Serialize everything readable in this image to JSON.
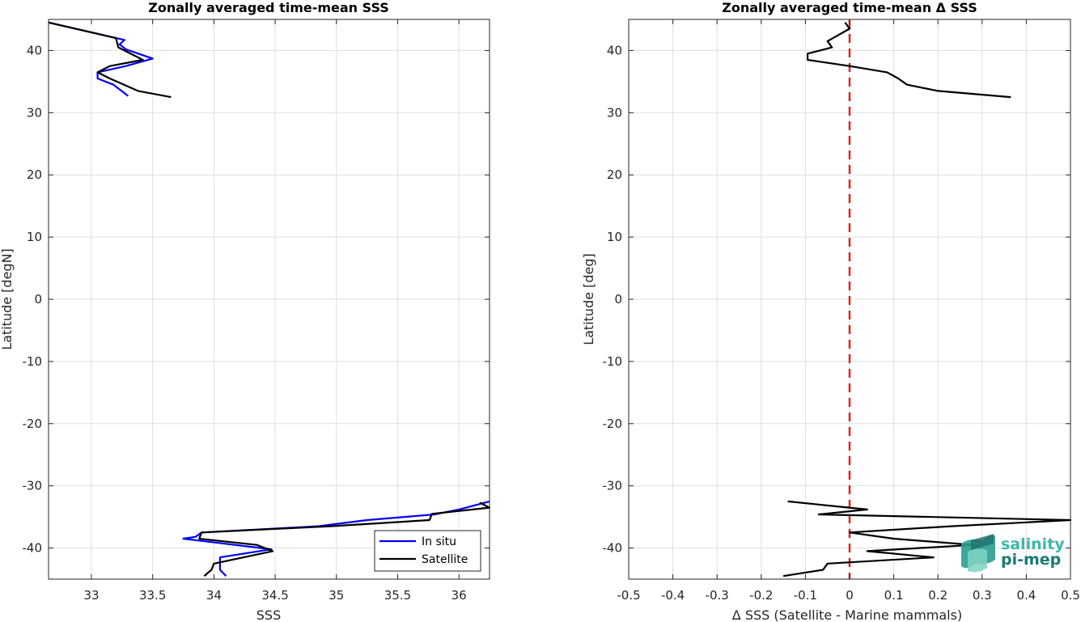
{
  "chart_data": [
    {
      "type": "line",
      "title": "Zonally averaged time-mean SSS",
      "xlabel": "SSS",
      "ylabel": "Latitude [degN]",
      "xlim": [
        32.65,
        36.25
      ],
      "ylim": [
        -45,
        45
      ],
      "xticks": [
        33,
        33.5,
        34,
        34.5,
        35,
        35.5,
        36
      ],
      "xtick_labels": [
        "33",
        "33.5",
        "34",
        "34.5",
        "35",
        "35.5",
        "36"
      ],
      "yticks": [
        -40,
        -30,
        -20,
        -10,
        0,
        10,
        20,
        30,
        40
      ],
      "ytick_labels": [
        "-40",
        "-30",
        "-20",
        "-10",
        "0",
        "10",
        "20",
        "30",
        "40"
      ],
      "grid": true,
      "legend_position": "bottom-right",
      "series": [
        {
          "name": "In situ",
          "color": "#0000ff",
          "segments": [
            [
              [
                32.65,
                44.5
              ],
              [
                33.27,
                41.7
              ],
              [
                33.23,
                41.0
              ],
              [
                33.28,
                40.2
              ],
              [
                33.5,
                38.7
              ],
              [
                33.28,
                37.5
              ],
              [
                33.05,
                36.5
              ],
              [
                33.05,
                35.5
              ],
              [
                33.18,
                34.5
              ],
              [
                33.3,
                32.7
              ]
            ],
            [
              [
                36.25,
                -32.5
              ],
              [
                36.0,
                -33.8
              ],
              [
                35.8,
                -34.6
              ],
              [
                35.25,
                -35.5
              ],
              [
                34.85,
                -36.5
              ],
              [
                33.9,
                -37.5
              ],
              [
                33.85,
                -38.2
              ],
              [
                33.75,
                -38.5
              ],
              [
                34.47,
                -40.2
              ],
              [
                34.05,
                -41.5
              ],
              [
                34.05,
                -43.5
              ],
              [
                34.1,
                -44.5
              ]
            ]
          ]
        },
        {
          "name": "Satellite",
          "color": "#000000",
          "segments": [
            [
              [
                32.65,
                44.5
              ],
              [
                33.2,
                42.0
              ],
              [
                33.22,
                40.5
              ],
              [
                33.42,
                38.5
              ],
              [
                33.15,
                37.5
              ],
              [
                33.05,
                36.5
              ],
              [
                33.15,
                35.5
              ],
              [
                33.38,
                33.5
              ],
              [
                33.65,
                32.5
              ]
            ],
            [
              [
                36.17,
                -32.7
              ],
              [
                36.25,
                -33.5
              ],
              [
                35.78,
                -34.5
              ],
              [
                35.76,
                -35.5
              ],
              [
                34.95,
                -36.5
              ],
              [
                33.9,
                -37.5
              ],
              [
                33.88,
                -38.5
              ],
              [
                34.35,
                -39.5
              ],
              [
                34.48,
                -40.5
              ],
              [
                34.0,
                -42.5
              ],
              [
                33.98,
                -43.5
              ],
              [
                33.92,
                -44.5
              ]
            ]
          ]
        }
      ]
    },
    {
      "type": "line",
      "title": "Zonally averaged time-mean Δ SSS",
      "xlabel": "Δ SSS (Satellite - Marine mammals)",
      "ylabel": "Latitude [deg]",
      "xlim": [
        -0.5,
        0.5
      ],
      "ylim": [
        -45,
        45
      ],
      "xticks": [
        -0.5,
        -0.4,
        -0.3,
        -0.2,
        -0.1,
        0,
        0.1,
        0.2,
        0.3,
        0.4,
        0.5
      ],
      "xtick_labels": [
        "-0.5",
        "-0.4",
        "-0.3",
        "-0.2",
        "-0.1",
        "0",
        "0.1",
        "0.2",
        "0.3",
        "0.4",
        "0.5"
      ],
      "yticks": [
        -40,
        -30,
        -20,
        -10,
        0,
        10,
        20,
        30,
        40
      ],
      "ytick_labels": [
        "-40",
        "-30",
        "-20",
        "-10",
        "0",
        "10",
        "20",
        "30",
        "40"
      ],
      "grid": true,
      "reference_line": {
        "x": 0,
        "color": "#e8211c",
        "style": "dashed"
      },
      "series": [
        {
          "color": "#000000",
          "segments": [
            [
              [
                -0.01,
                44.5
              ],
              [
                0.0,
                43.5
              ],
              [
                -0.05,
                41.5
              ],
              [
                -0.04,
                40.5
              ],
              [
                -0.095,
                39.5
              ],
              [
                -0.095,
                38.5
              ],
              [
                0.0,
                37.5
              ],
              [
                0.085,
                36.5
              ],
              [
                0.11,
                35.5
              ],
              [
                0.13,
                34.5
              ],
              [
                0.2,
                33.5
              ],
              [
                0.365,
                32.5
              ]
            ],
            [
              [
                -0.14,
                -32.5
              ],
              [
                0.04,
                -33.8
              ],
              [
                -0.07,
                -34.6
              ],
              [
                0.5,
                -35.5
              ],
              [
                0.23,
                -36.5
              ],
              [
                0.0,
                -37.5
              ],
              [
                0.1,
                -38.5
              ],
              [
                0.28,
                -39.5
              ],
              [
                0.04,
                -40.5
              ],
              [
                0.19,
                -41.5
              ],
              [
                -0.05,
                -42.5
              ],
              [
                -0.06,
                -43.5
              ],
              [
                -0.15,
                -44.5
              ]
            ]
          ]
        }
      ]
    }
  ],
  "legend": {
    "items": [
      {
        "label": "In situ",
        "color": "#0000ff"
      },
      {
        "label": "Satellite",
        "color": "#000000"
      }
    ]
  },
  "logo": {
    "line1": "salinity",
    "line2": "pi-mep",
    "color1": "#3cb8a8",
    "color2": "#1b7a74"
  }
}
